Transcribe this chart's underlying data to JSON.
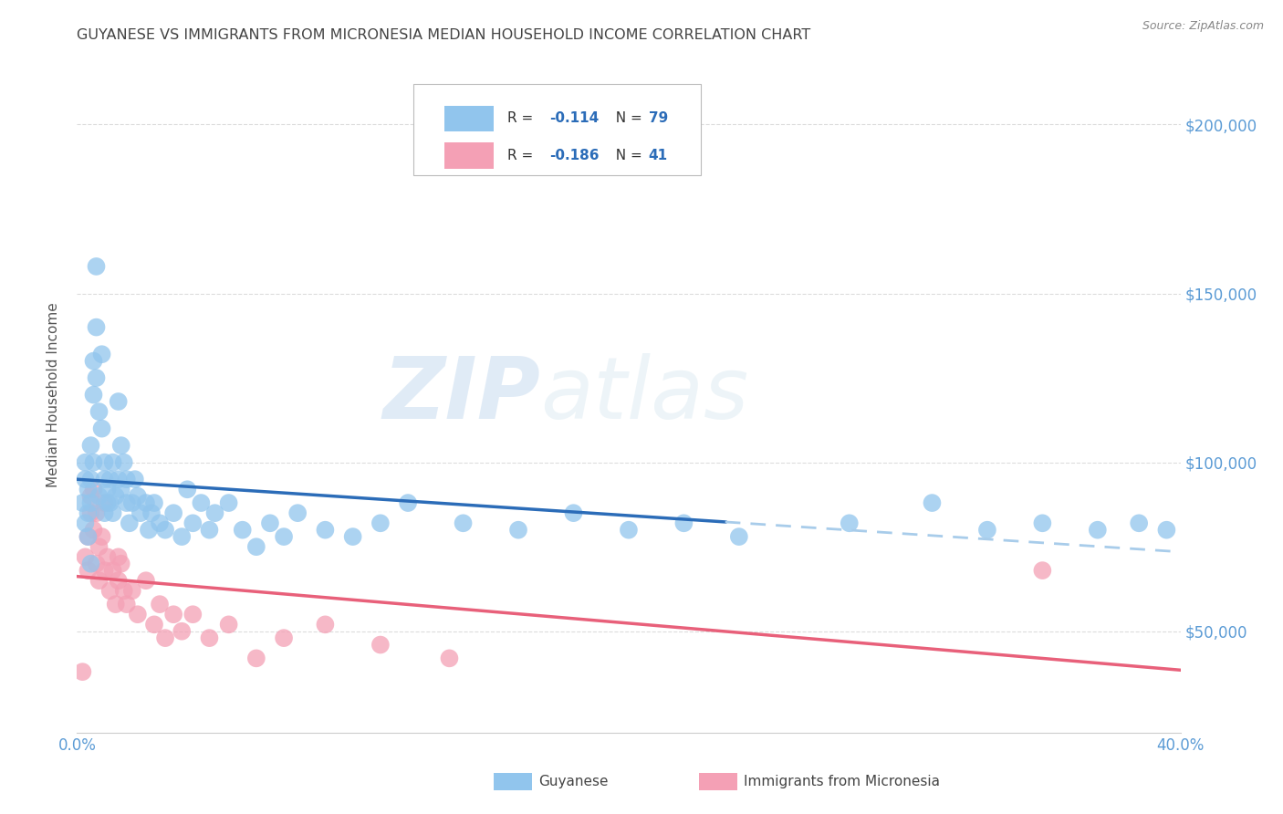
{
  "title": "GUYANESE VS IMMIGRANTS FROM MICRONESIA MEDIAN HOUSEHOLD INCOME CORRELATION CHART",
  "source": "Source: ZipAtlas.com",
  "ylabel": "Median Household Income",
  "xlim": [
    0.0,
    0.4
  ],
  "ylim": [
    20000,
    220000
  ],
  "yticks": [
    50000,
    100000,
    150000,
    200000
  ],
  "ytick_labels": [
    "$50,000",
    "$100,000",
    "$150,000",
    "$200,000"
  ],
  "xticks": [
    0.0,
    0.05,
    0.1,
    0.15,
    0.2,
    0.25,
    0.3,
    0.35,
    0.4
  ],
  "watermark": "ZIPatlas",
  "group1_color": "#91C5ED",
  "group2_color": "#F4A0B5",
  "line1_color": "#2B6CB8",
  "line2_color": "#E8607A",
  "line1_dash_color": "#A8CCEA",
  "background_color": "#FFFFFF",
  "grid_color": "#DCDCDC",
  "title_color": "#444444",
  "axis_label_color": "#555555",
  "tick_color": "#5B9BD5",
  "group1_x": [
    0.002,
    0.003,
    0.003,
    0.003,
    0.004,
    0.004,
    0.004,
    0.005,
    0.005,
    0.005,
    0.005,
    0.006,
    0.006,
    0.006,
    0.007,
    0.007,
    0.007,
    0.008,
    0.008,
    0.009,
    0.009,
    0.01,
    0.01,
    0.01,
    0.011,
    0.011,
    0.012,
    0.012,
    0.013,
    0.013,
    0.014,
    0.015,
    0.015,
    0.016,
    0.016,
    0.017,
    0.018,
    0.018,
    0.019,
    0.02,
    0.021,
    0.022,
    0.023,
    0.025,
    0.026,
    0.027,
    0.028,
    0.03,
    0.032,
    0.035,
    0.038,
    0.04,
    0.042,
    0.045,
    0.048,
    0.05,
    0.055,
    0.06,
    0.065,
    0.07,
    0.075,
    0.08,
    0.09,
    0.1,
    0.11,
    0.12,
    0.14,
    0.16,
    0.18,
    0.2,
    0.22,
    0.24,
    0.28,
    0.31,
    0.33,
    0.35,
    0.37,
    0.385,
    0.395
  ],
  "group1_y": [
    88000,
    82000,
    95000,
    100000,
    78000,
    85000,
    92000,
    70000,
    88000,
    95000,
    105000,
    130000,
    120000,
    100000,
    158000,
    140000,
    125000,
    115000,
    90000,
    132000,
    110000,
    95000,
    85000,
    100000,
    92000,
    88000,
    95000,
    88000,
    100000,
    85000,
    90000,
    118000,
    95000,
    105000,
    92000,
    100000,
    88000,
    95000,
    82000,
    88000,
    95000,
    90000,
    85000,
    88000,
    80000,
    85000,
    88000,
    82000,
    80000,
    85000,
    78000,
    92000,
    82000,
    88000,
    80000,
    85000,
    88000,
    80000,
    75000,
    82000,
    78000,
    85000,
    80000,
    78000,
    82000,
    88000,
    82000,
    80000,
    85000,
    80000,
    82000,
    78000,
    82000,
    88000,
    80000,
    82000,
    80000,
    82000,
    80000
  ],
  "group2_x": [
    0.002,
    0.003,
    0.004,
    0.004,
    0.005,
    0.005,
    0.006,
    0.006,
    0.007,
    0.007,
    0.008,
    0.008,
    0.009,
    0.01,
    0.01,
    0.011,
    0.012,
    0.013,
    0.014,
    0.015,
    0.015,
    0.016,
    0.017,
    0.018,
    0.02,
    0.022,
    0.025,
    0.028,
    0.03,
    0.032,
    0.035,
    0.038,
    0.042,
    0.048,
    0.055,
    0.065,
    0.075,
    0.09,
    0.11,
    0.135,
    0.35
  ],
  "group2_y": [
    38000,
    72000,
    78000,
    68000,
    85000,
    90000,
    80000,
    92000,
    70000,
    85000,
    75000,
    65000,
    78000,
    88000,
    68000,
    72000,
    62000,
    68000,
    58000,
    72000,
    65000,
    70000,
    62000,
    58000,
    62000,
    55000,
    65000,
    52000,
    58000,
    48000,
    55000,
    50000,
    55000,
    48000,
    52000,
    42000,
    48000,
    52000,
    46000,
    42000,
    68000
  ]
}
